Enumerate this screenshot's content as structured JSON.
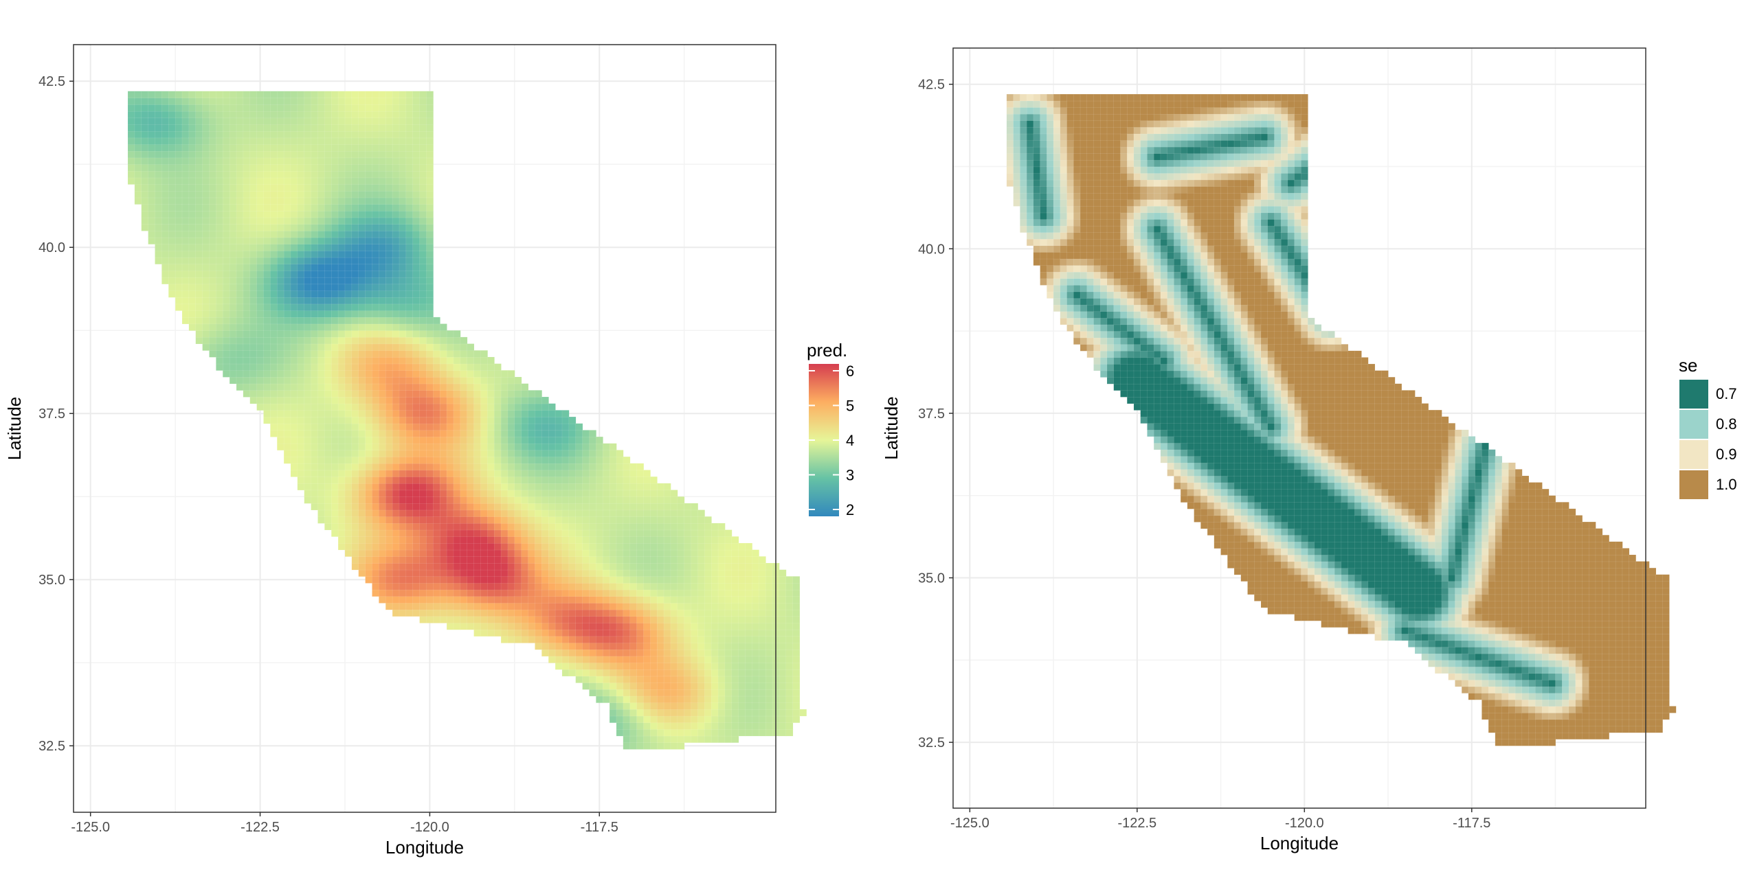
{
  "chart_data": [
    {
      "type": "heatmap",
      "title": "",
      "xlabel": "Longitude",
      "ylabel": "Latitude",
      "xlim": [
        -125.25,
        -114.9
      ],
      "ylim": [
        31.5,
        43.05
      ],
      "xticks": [
        "-125.0",
        "-122.5",
        "-120.0",
        "-117.5"
      ],
      "xtick_values": [
        -125.0,
        -122.5,
        -120.0,
        -117.5
      ],
      "yticks": [
        "32.5",
        "35.0",
        "37.5",
        "40.0",
        "42.5"
      ],
      "ytick_values": [
        32.5,
        35.0,
        37.5,
        40.0,
        42.5
      ],
      "grid": true,
      "legend": {
        "title": "pred.",
        "type": "continuous",
        "placement": "right",
        "labels": [
          "2",
          "3",
          "4",
          "5",
          "6"
        ],
        "values": [
          2,
          3,
          4,
          5,
          6
        ],
        "colors": [
          "#3288bd",
          "#66c2a5",
          "#e6f598",
          "#fdae61",
          "#d53e4f"
        ]
      },
      "cell_size_degrees": 0.1,
      "hotspots": [
        {
          "lon": -120.3,
          "lat": 36.3,
          "value": 6.0
        },
        {
          "lon": -119.4,
          "lat": 35.6,
          "value": 5.6
        },
        {
          "lon": -119.1,
          "lat": 35.0,
          "value": 5.6
        },
        {
          "lon": -120.4,
          "lat": 35.0,
          "value": 5.2
        },
        {
          "lon": -117.2,
          "lat": 34.2,
          "value": 5.3
        },
        {
          "lon": -118.0,
          "lat": 34.4,
          "value": 5.0
        },
        {
          "lon": -120.1,
          "lat": 37.5,
          "value": 5.3
        },
        {
          "lon": -120.6,
          "lat": 38.2,
          "value": 4.8
        },
        {
          "lon": -116.5,
          "lat": 33.3,
          "value": 4.8
        },
        {
          "lon": -121.6,
          "lat": 39.5,
          "value": 2.0
        },
        {
          "lon": -120.7,
          "lat": 40.0,
          "value": 2.6
        },
        {
          "lon": -124.0,
          "lat": 41.9,
          "value": 2.8
        },
        {
          "lon": -118.3,
          "lat": 37.3,
          "value": 3.0
        },
        {
          "lon": -117.3,
          "lat": 32.9,
          "value": 3.0
        },
        {
          "lon": -120.4,
          "lat": 39.2,
          "value": 3.0
        },
        {
          "lon": -123.0,
          "lat": 38.3,
          "value": 3.3
        }
      ]
    },
    {
      "type": "heatmap",
      "title": "",
      "xlabel": "Longitude",
      "ylabel": "Latitude",
      "xlim": [
        -125.25,
        -114.9
      ],
      "ylim": [
        31.5,
        43.05
      ],
      "xticks": [
        "-125.0",
        "-122.5",
        "-120.0",
        "-117.5"
      ],
      "xtick_values": [
        -125.0,
        -122.5,
        -120.0,
        -117.5
      ],
      "yticks": [
        "32.5",
        "35.0",
        "37.5",
        "40.0",
        "42.5"
      ],
      "ytick_values": [
        32.5,
        35.0,
        37.5,
        40.0,
        42.5
      ],
      "grid": true,
      "legend": {
        "title": "se",
        "type": "discrete",
        "placement": "right",
        "labels": [
          "0.7",
          "0.8",
          "0.9",
          "1.0"
        ],
        "values": [
          0.7,
          0.8,
          0.9,
          1.0
        ],
        "colors": [
          "#1f7a6e",
          "#9bd3cb",
          "#f2e6c4",
          "#b88a4a"
        ]
      },
      "cell_size_degrees": 0.1,
      "low_se_bands": [
        {
          "from": [
            -122.5,
            38.0
          ],
          "to": [
            -118.3,
            34.8
          ]
        },
        {
          "from": [
            -122.2,
            40.3
          ],
          "to": [
            -120.5,
            37.3
          ]
        },
        {
          "from": [
            -118.5,
            34.2
          ],
          "to": [
            -116.3,
            33.4
          ]
        },
        {
          "from": [
            -120.5,
            40.4
          ],
          "to": [
            -119.6,
            39.0
          ]
        },
        {
          "from": [
            -117.3,
            37.0
          ],
          "to": [
            -117.8,
            35.0
          ]
        },
        {
          "from": [
            -122.2,
            41.4
          ],
          "to": [
            -120.6,
            41.7
          ]
        },
        {
          "from": [
            -120.2,
            41.0
          ],
          "to": [
            -119.1,
            41.8
          ]
        },
        {
          "from": [
            -124.1,
            41.9
          ],
          "to": [
            -123.9,
            40.5
          ]
        },
        {
          "from": [
            -123.4,
            39.3
          ],
          "to": [
            -122.1,
            38.3
          ]
        }
      ]
    }
  ]
}
